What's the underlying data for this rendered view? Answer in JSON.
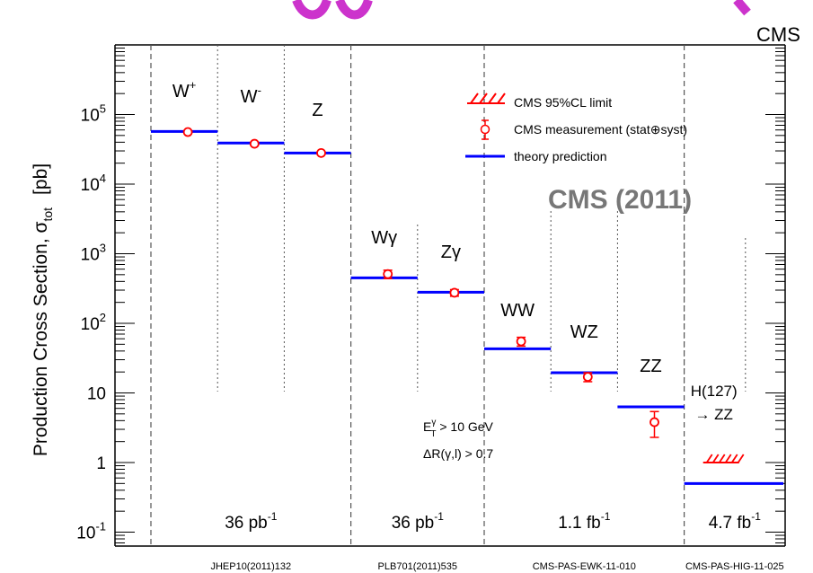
{
  "header": {
    "cms_label": "CMS",
    "accent_color": "#cc33cc"
  },
  "legend": {
    "limit_label": "CMS 95%CL limit",
    "measurement_label": "CMS measurement (stat⊕syst)",
    "theory_label": "theory prediction",
    "placement": "top-right"
  },
  "watermark": "CMS (2011)",
  "annotation": {
    "et_cut_main": "E",
    "et_cut_sup": "γ",
    "et_cut_sub": "T",
    "et_cut_rest": " > 10 GeV",
    "dr_cut": "ΔR(γ,l) > 0.7"
  },
  "chart_data": {
    "type": "scatter",
    "ylabel_main": "Production Cross Section,  σ",
    "ylabel_sub": "tot",
    "ylabel_unit": "[pb]",
    "yscale": "log",
    "ylim": [
      0.05,
      1000000
    ],
    "yticks": [
      {
        "value": 0.1,
        "base": "10",
        "exp": "-1"
      },
      {
        "value": 1,
        "base": "1",
        "exp": ""
      },
      {
        "value": 10,
        "base": "10",
        "exp": ""
      },
      {
        "value": 100,
        "base": "10",
        "exp": "2"
      },
      {
        "value": 1000,
        "base": "10",
        "exp": "3"
      },
      {
        "value": 10000,
        "base": "10",
        "exp": "4"
      },
      {
        "value": 100000,
        "base": "10",
        "exp": "5"
      }
    ],
    "processes": [
      {
        "label": "W",
        "sup": "+",
        "theory": 57000,
        "measured": 56000,
        "err_lo": 2000,
        "err_hi": 2000
      },
      {
        "label": "W",
        "sup": "-",
        "theory": 39000,
        "measured": 38000,
        "err_lo": 1500,
        "err_hi": 1500
      },
      {
        "label": "Z",
        "sup": "",
        "theory": 28000,
        "measured": 28000,
        "err_lo": 1000,
        "err_hi": 1000
      },
      {
        "label": "Wγ",
        "sup": "",
        "theory": 450,
        "measured": 510,
        "err_lo": 70,
        "err_hi": 70
      },
      {
        "label": "Zγ",
        "sup": "",
        "theory": 280,
        "measured": 275,
        "err_lo": 30,
        "err_hi": 30
      },
      {
        "label": "WW",
        "sup": "",
        "theory": 43,
        "measured": 55,
        "err_lo": 8,
        "err_hi": 8
      },
      {
        "label": "WZ",
        "sup": "",
        "theory": 19.5,
        "measured": 17,
        "err_lo": 2.5,
        "err_hi": 2.5
      },
      {
        "label": "ZZ",
        "sup": "",
        "theory": 6.3,
        "measured": 3.8,
        "err_lo": 1.5,
        "err_hi": 1.6
      },
      {
        "label": "H(127)",
        "label2": "→ ZZ",
        "sup": "",
        "theory": 0.5,
        "limit": 1.0
      }
    ],
    "luminosity_groups": [
      {
        "label": "36 pb",
        "sup": "-1",
        "reference": "JHEP10(2011)132"
      },
      {
        "label": "36 pb",
        "sup": "-1",
        "reference": "PLB701(2011)535"
      },
      {
        "label": "1.1 fb",
        "sup": "-1",
        "reference": "CMS-PAS-EWK-11-010"
      },
      {
        "label": "4.7 fb",
        "sup": "-1",
        "reference": "CMS-PAS-HIG-11-025"
      }
    ],
    "colors": {
      "theory": "#0000ff",
      "measurement": "#ff0000",
      "limit": "#ff0000",
      "watermark": "#777777"
    },
    "grid": false
  }
}
